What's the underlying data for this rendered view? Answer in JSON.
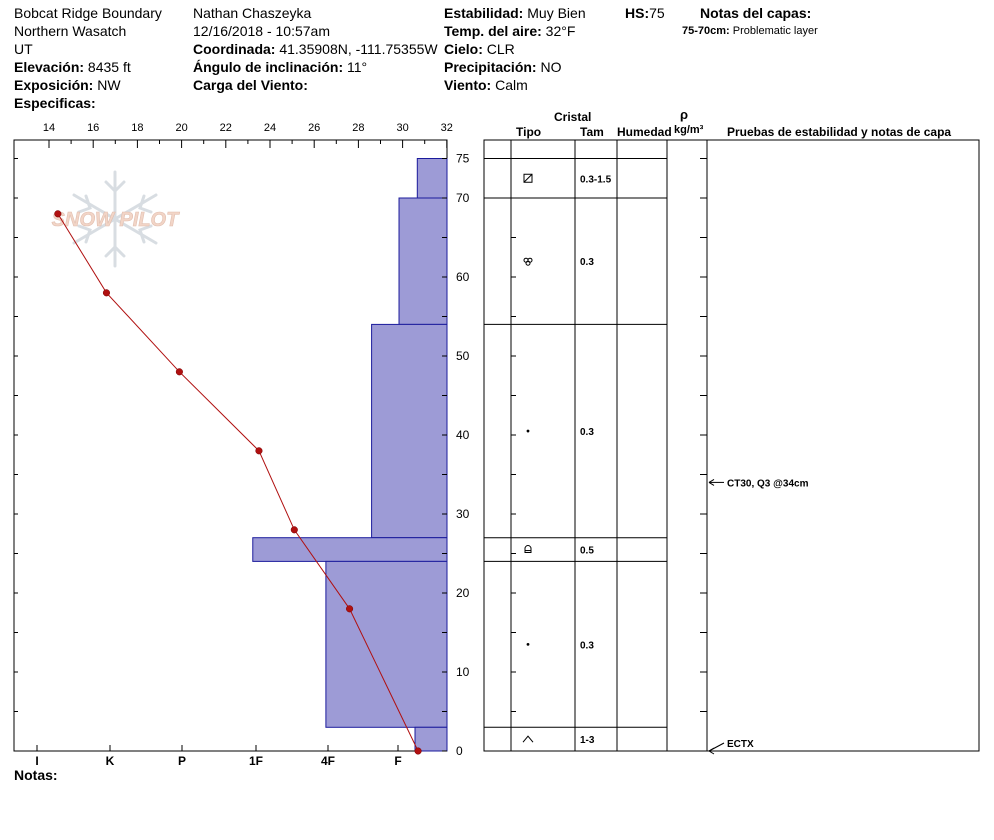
{
  "header": {
    "location": "Bobcat Ridge Boundary",
    "range": "Northern Wasatch",
    "state": "UT",
    "elevation_label": "Elevación:",
    "elevation_value": "8435 ft",
    "aspect_label": "Exposición:",
    "aspect_value": "NW",
    "specifics_label": "Especificas:",
    "observer": "Nathan  Chaszeyka",
    "datetime": "12/16/2018 - 10:57am",
    "coord_label": "Coordinada:",
    "coord_value": "41.35908N, -111.75355W",
    "incline_label": "Ángulo de inclinación:",
    "incline_value": "11°",
    "wind_load_label": "Carga del Viento:",
    "stability_label": "Estabilidad:",
    "stability_value": "Muy Bien",
    "airtemp_label": "Temp. del aire:",
    "airtemp_value": "32°F",
    "sky_label": "Cielo:",
    "sky_value": "CLR",
    "precip_label": "Precipitación:",
    "precip_value": "NO",
    "wind_label": "Viento:",
    "wind_value": "Calm",
    "hs_label": "HS:",
    "hs_value": "75",
    "layer_notes_label": "Notas del capas:",
    "layer_note_depth": "75-70cm:",
    "layer_note_text": "Problematic layer",
    "notes_label": "Notas:"
  },
  "watermark": {
    "text": "SNOW PILOT"
  },
  "columns": {
    "crystal": "Cristal",
    "type": "Tipo",
    "size": "Tam",
    "moisture": "Humedad",
    "rho": "ρ",
    "density_unit": "kg/m³",
    "tests": "Pruebas de estabilidad y notas de capa"
  },
  "chart_data": {
    "type": "line",
    "title": "",
    "temperature_axis": {
      "ticks": [
        14,
        16,
        18,
        20,
        22,
        24,
        26,
        28,
        30,
        32
      ],
      "range": [
        13,
        32
      ]
    },
    "depth_axis": {
      "ticks": [
        0,
        10,
        20,
        30,
        40,
        50,
        60,
        70,
        75
      ],
      "range": [
        0,
        77
      ]
    },
    "hardness_axis": {
      "ticks": [
        "I",
        "K",
        "P",
        "1F",
        "4F",
        "F"
      ]
    },
    "temperature_profile": [
      {
        "temp": 14.4,
        "depth": 68
      },
      {
        "temp": 16.6,
        "depth": 58
      },
      {
        "temp": 19.9,
        "depth": 48
      },
      {
        "temp": 23.5,
        "depth": 38
      },
      {
        "temp": 25.1,
        "depth": 28
      },
      {
        "temp": 27.6,
        "depth": 18
      },
      {
        "temp": 30.7,
        "depth": 0
      }
    ],
    "layers": [
      {
        "top": 75,
        "bottom": 70,
        "hardness": 1.3,
        "grain": "facet-rounded",
        "size": "0.3-1.5"
      },
      {
        "top": 70,
        "bottom": 54,
        "hardness": 2.1,
        "grain": "decomposing",
        "size": "0.3"
      },
      {
        "top": 54,
        "bottom": 27,
        "hardness": 3.3,
        "grain": "rounded",
        "size": "0.3"
      },
      {
        "top": 27,
        "bottom": 24,
        "hardness": 8.5,
        "grain": "facet",
        "size": "0.5"
      },
      {
        "top": 24,
        "bottom": 3,
        "hardness": 5.3,
        "grain": "rounded",
        "size": "0.3"
      },
      {
        "top": 3,
        "bottom": 0,
        "hardness": 1.4,
        "grain": "depth-hoar",
        "size": "1-3"
      }
    ],
    "tests": [
      {
        "depth": 34,
        "text": "CT30, Q3 @34cm"
      },
      {
        "depth": 0,
        "text": "ECTX"
      }
    ]
  }
}
